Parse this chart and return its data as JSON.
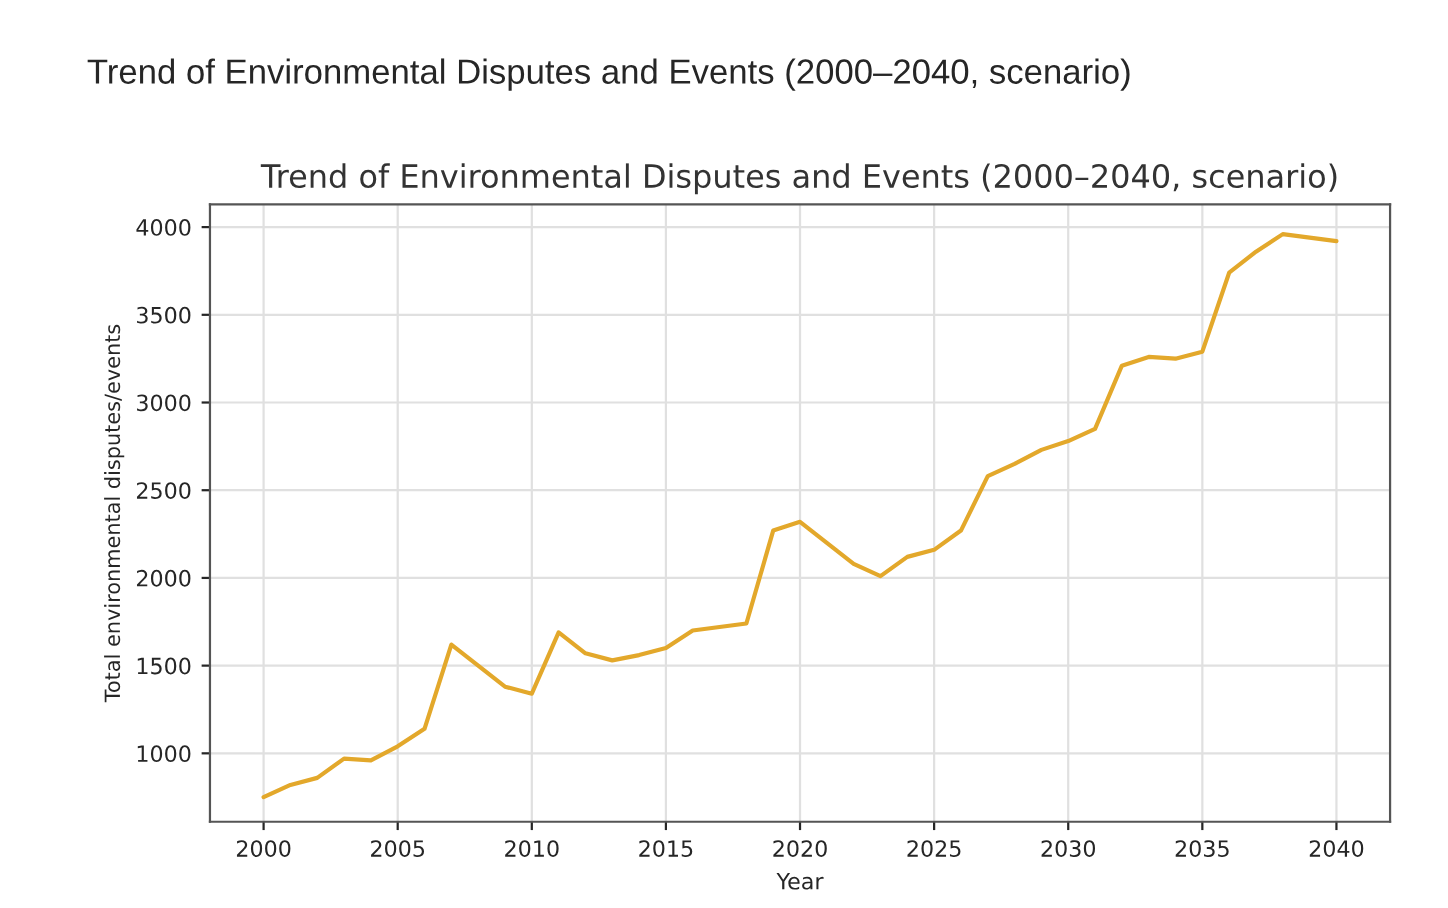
{
  "chart_data": {
    "type": "line",
    "title": "Trend of Environmental Disputes and Events (2000–2040, scenario)",
    "subtitle": "Trend of Environmental Disputes and Events (2000–2040, scenario)",
    "xlabel": "Year",
    "ylabel": "Total environmental disputes/events",
    "x": [
      2000,
      2001,
      2002,
      2003,
      2004,
      2005,
      2006,
      2007,
      2008,
      2009,
      2010,
      2011,
      2012,
      2013,
      2014,
      2015,
      2016,
      2017,
      2018,
      2019,
      2020,
      2021,
      2022,
      2023,
      2024,
      2025,
      2026,
      2027,
      2028,
      2029,
      2030,
      2031,
      2032,
      2033,
      2034,
      2035,
      2036,
      2037,
      2038,
      2039,
      2040
    ],
    "series": [
      {
        "color": "#e3a82b",
        "values": [
          750,
          820,
          860,
          970,
          960,
          1040,
          1140,
          1620,
          1500,
          1380,
          1340,
          1690,
          1570,
          1530,
          1560,
          1600,
          1700,
          1720,
          1740,
          2270,
          2320,
          2200,
          2080,
          2010,
          2120,
          2160,
          2270,
          2580,
          2650,
          2730,
          2780,
          2850,
          3210,
          3260,
          3250,
          3290,
          3740,
          3860,
          3960,
          3940,
          3920
        ]
      }
    ],
    "xlim": [
      1998,
      2042
    ],
    "xticks": [
      2000,
      2005,
      2010,
      2015,
      2020,
      2025,
      2030,
      2035,
      2040
    ],
    "ylim": [
      610,
      4130
    ],
    "yticks": [
      1000,
      1500,
      2000,
      2500,
      3000,
      3500,
      4000
    ],
    "grid": true,
    "legend": false,
    "marker": "none",
    "line_style": "solid"
  }
}
